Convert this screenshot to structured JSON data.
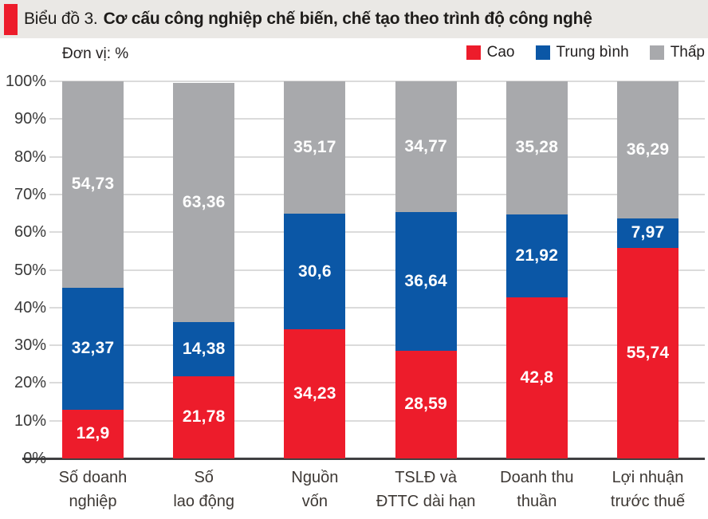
{
  "header": {
    "prefix": "Biểu đồ 3.",
    "title": "Cơ cấu công nghiệp chế biến, chế tạo theo trình độ công nghệ",
    "accent_color": "#ED1C2B",
    "background_color": "#EAE8E5"
  },
  "unit_label": "Đơn vị: %",
  "legend": [
    {
      "name": "Cao",
      "color": "#ED1C2B"
    },
    {
      "name": "Trung bình",
      "color": "#0B57A6"
    },
    {
      "name": "Thấp",
      "color": "#A8A9AC"
    }
  ],
  "chart_data": {
    "type": "bar",
    "stacked": true,
    "orientation": "vertical",
    "title": "Cơ cấu công nghiệp chế biến, chế tạo theo trình độ công nghệ",
    "unit": "%",
    "categories": [
      "Số doanh nghiệp",
      "Số lao động",
      "Nguồn vốn",
      "TSLĐ và ĐTTC dài hạn",
      "Doanh thu thuần",
      "Lợi nhuận trước thuế"
    ],
    "category_lines": [
      [
        "Số doanh",
        "nghiệp"
      ],
      [
        "Số",
        "lao động"
      ],
      [
        "Nguồn",
        "vốn"
      ],
      [
        "TSLĐ và",
        "ĐTTC dài hạn"
      ],
      [
        "Doanh thu",
        "thuần"
      ],
      [
        "Lợi nhuận",
        "trước thuế"
      ]
    ],
    "series": [
      {
        "name": "Cao",
        "color": "#ED1C2B",
        "values": [
          12.9,
          21.78,
          34.23,
          28.59,
          42.8,
          55.74
        ],
        "labels": [
          "12,9",
          "21,78",
          "34,23",
          "28,59",
          "42,8",
          "55,74"
        ]
      },
      {
        "name": "Trung bình",
        "color": "#0B57A6",
        "values": [
          32.37,
          14.38,
          30.6,
          36.64,
          21.92,
          7.97
        ],
        "labels": [
          "32,37",
          "14,38",
          "30,6",
          "36,64",
          "21,92",
          "7,97"
        ]
      },
      {
        "name": "Thấp",
        "color": "#A8A9AC",
        "values": [
          54.73,
          63.36,
          35.17,
          34.77,
          35.28,
          36.29
        ],
        "labels": [
          "54,73",
          "63,36",
          "35,17",
          "34,77",
          "35,28",
          "36,29"
        ]
      }
    ],
    "ylim": [
      0,
      100
    ],
    "yticks": [
      "0%",
      "10%",
      "20%",
      "30%",
      "40%",
      "50%",
      "60%",
      "70%",
      "80%",
      "90%",
      "100%"
    ],
    "grid": true,
    "legend_position": "top-right"
  }
}
